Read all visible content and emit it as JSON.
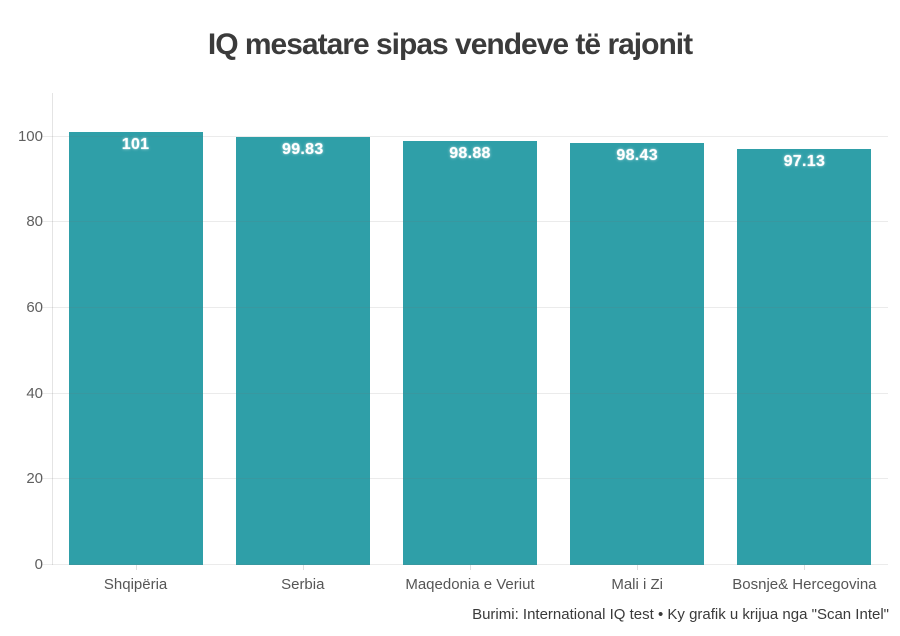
{
  "chart_data": {
    "type": "bar",
    "title": "IQ mesatare sipas vendeve të rajonit",
    "categories": [
      "Shqipëria",
      "Serbia",
      "Maqedonia e Veriut",
      "Mali i Zi",
      "Bosnje& Hercegovina"
    ],
    "values": [
      101,
      99.83,
      98.88,
      98.43,
      97.13
    ],
    "value_labels": [
      "101",
      "99.83",
      "98.88",
      "98.43",
      "97.13"
    ],
    "yticks": [
      0,
      20,
      40,
      60,
      80,
      100
    ],
    "ylim": [
      0,
      110
    ],
    "xlabel": "",
    "ylabel": "",
    "grid": true,
    "legend": false,
    "footer": "Burimi: International IQ test • Ky grafik u krijua nga \"Scan Intel\""
  },
  "colors": {
    "background": "#ffffff",
    "bar": "#2f9fa8",
    "title_text": "#3b3b3b",
    "axis_text": "#5f5f5f",
    "gridline": "#e8e8e8",
    "value_label_text": "#ffffff",
    "footer_text": "#3a3a3a"
  }
}
